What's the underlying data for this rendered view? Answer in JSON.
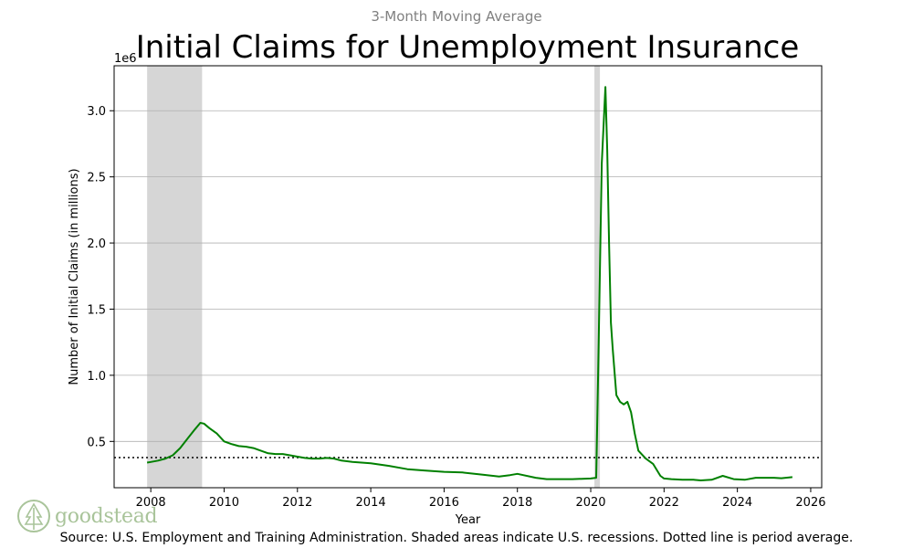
{
  "subtitle": "3-Month Moving Average",
  "source_note": "Source: U.S. Employment and Training Administration. Shaded areas indicate U.S. recessions. Dotted line is period average.",
  "logo_text": "goodstead",
  "colors": {
    "line": "#008000",
    "recession": "#d6d6d6",
    "logo": "#a9c49a",
    "subtitle": "#808080"
  },
  "chart_data": {
    "type": "line",
    "title": "Initial Claims for Unemployment Insurance",
    "xlabel": "Year",
    "ylabel": "Number of Initial Claims (in millions)",
    "y_offset_label": "1e6",
    "xlim": [
      2007.0,
      2026.3
    ],
    "ylim": [
      150000,
      3340000
    ],
    "x_ticks": [
      2008,
      2010,
      2012,
      2014,
      2016,
      2018,
      2020,
      2022,
      2024,
      2026
    ],
    "x_tick_labels": [
      "2008",
      "2010",
      "2012",
      "2014",
      "2016",
      "2018",
      "2020",
      "2022",
      "2024",
      "2026"
    ],
    "y_ticks": [
      500000,
      1000000,
      1500000,
      2000000,
      2500000,
      3000000
    ],
    "y_tick_labels": [
      "0.5",
      "1.0",
      "1.5",
      "2.0",
      "2.5",
      "3.0"
    ],
    "grid": "horizontal",
    "period_average": 378000,
    "recessions": [
      [
        2007.9,
        2009.4
      ],
      [
        2020.1,
        2020.25
      ]
    ],
    "series": [
      {
        "x": [
          2007.9,
          2008.0,
          2008.2,
          2008.4,
          2008.6,
          2008.8,
          2009.0,
          2009.2,
          2009.35,
          2009.45,
          2009.6,
          2009.8,
          2010.0,
          2010.2,
          2010.4,
          2010.6,
          2010.8,
          2011.0,
          2011.2,
          2011.4,
          2011.6,
          2011.8,
          2012.0,
          2012.2,
          2012.4,
          2012.6,
          2012.8,
          2013.0,
          2013.2,
          2013.5,
          2014.0,
          2014.5,
          2015.0,
          2015.5,
          2016.0,
          2016.5,
          2017.0,
          2017.5,
          2017.8,
          2018.0,
          2018.5,
          2018.8,
          2019.0,
          2019.5,
          2020.0,
          2020.15,
          2020.2,
          2020.3,
          2020.4,
          2020.45,
          2020.5,
          2020.55,
          2020.6,
          2020.7,
          2020.8,
          2020.9,
          2021.0,
          2021.1,
          2021.2,
          2021.3,
          2021.5,
          2021.7,
          2021.9,
          2022.0,
          2022.2,
          2022.5,
          2022.8,
          2023.0,
          2023.3,
          2023.6,
          2023.9,
          2024.2,
          2024.5,
          2024.8,
          2025.0,
          2025.2,
          2025.5
        ],
        "y": [
          340000,
          345000,
          355000,
          370000,
          395000,
          450000,
          520000,
          590000,
          640000,
          635000,
          600000,
          560000,
          500000,
          480000,
          465000,
          460000,
          450000,
          430000,
          410000,
          405000,
          405000,
          395000,
          385000,
          375000,
          370000,
          370000,
          375000,
          370000,
          355000,
          345000,
          335000,
          315000,
          290000,
          280000,
          270000,
          265000,
          250000,
          235000,
          245000,
          255000,
          225000,
          215000,
          215000,
          215000,
          220000,
          225000,
          1000000,
          2600000,
          3180000,
          2700000,
          2000000,
          1400000,
          1200000,
          850000,
          800000,
          780000,
          800000,
          720000,
          560000,
          430000,
          370000,
          330000,
          240000,
          220000,
          215000,
          210000,
          210000,
          205000,
          210000,
          240000,
          215000,
          210000,
          225000,
          225000,
          225000,
          222000,
          230000
        ]
      }
    ]
  }
}
